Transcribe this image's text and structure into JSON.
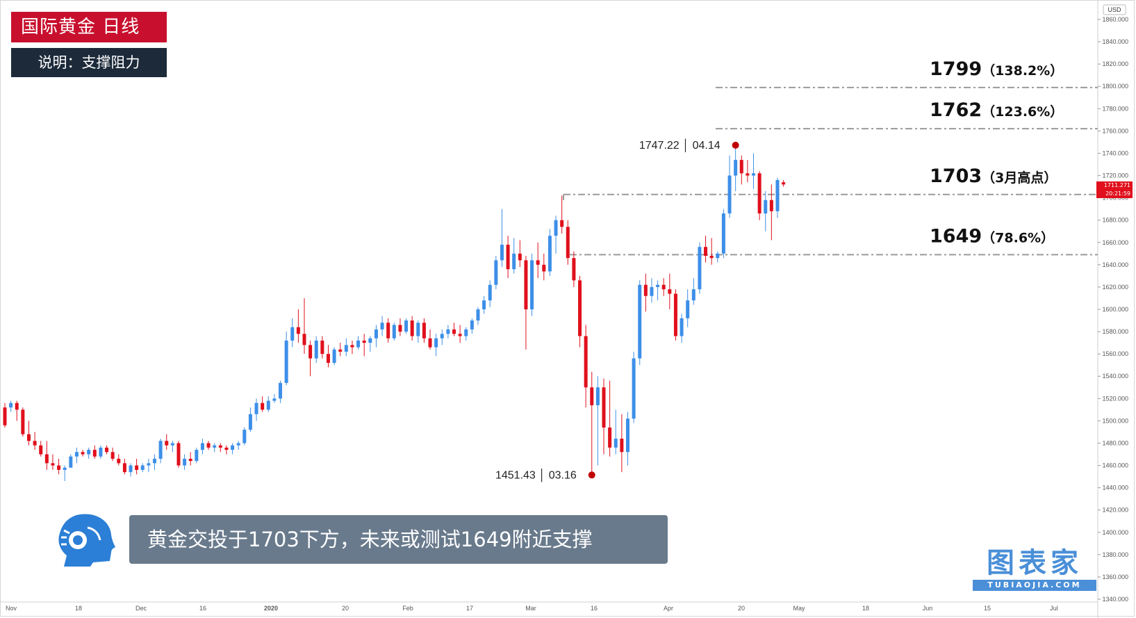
{
  "header": {
    "title": "国际黄金  日线",
    "note": "说明：支撑阻力"
  },
  "caption": "黄金交投于1703下方，未来或测试1649附近支撑",
  "watermark": {
    "main": "图表家",
    "sub": "TUBIAOJIA.COM"
  },
  "colors": {
    "up": "#3d8fe8",
    "down": "#e0101c",
    "level_line": "#9a9a9a",
    "marker": "#c00000",
    "title_bg": "#c8102e",
    "note_bg": "#1c2a3a",
    "caption_bg": "#697a8c",
    "price_tag": "#e0101c"
  },
  "chart_data": {
    "type": "candlestick",
    "title": "国际黄金 日线",
    "y_axis": {
      "currency_label": "USD",
      "range": [
        1332,
        1868
      ],
      "tick_labels": [
        "1860.000",
        "1840.000",
        "1820.000",
        "1800.000",
        "1780.000",
        "1760.000",
        "1740.000",
        "1720.000",
        "1700.000",
        "1680.000",
        "1660.000",
        "1640.000",
        "1620.000",
        "1600.000",
        "1580.000",
        "1560.000",
        "1540.000",
        "1520.000",
        "1500.000",
        "1480.000",
        "1460.000",
        "1440.000",
        "1420.000",
        "1400.000",
        "1380.000",
        "1360.000",
        "1340.000"
      ]
    },
    "x_axis": {
      "tick_labels": [
        "Nov",
        "18",
        "Dec",
        "16",
        "2020",
        "20",
        "Feb",
        "17",
        "Mar",
        "16",
        "Apr",
        "20",
        "May",
        "18",
        "Jun",
        "15",
        "Jul"
      ]
    },
    "current_price": {
      "price": "1711.271",
      "time": "20:21:59"
    },
    "candles": [
      [
        1512,
        1516,
        1494,
        1496
      ],
      [
        1512,
        1518,
        1508,
        1516
      ],
      [
        1516,
        1518,
        1500,
        1510
      ],
      [
        1510,
        1512,
        1486,
        1488
      ],
      [
        1488,
        1500,
        1478,
        1482
      ],
      [
        1482,
        1490,
        1474,
        1478
      ],
      [
        1478,
        1482,
        1468,
        1470
      ],
      [
        1470,
        1482,
        1456,
        1462
      ],
      [
        1462,
        1470,
        1456,
        1460
      ],
      [
        1460,
        1466,
        1452,
        1456
      ],
      [
        1456,
        1460,
        1446,
        1458
      ],
      [
        1458,
        1470,
        1458,
        1468
      ],
      [
        1468,
        1476,
        1462,
        1472
      ],
      [
        1472,
        1474,
        1468,
        1470
      ],
      [
        1470,
        1476,
        1466,
        1474
      ],
      [
        1474,
        1478,
        1466,
        1468
      ],
      [
        1468,
        1478,
        1466,
        1476
      ],
      [
        1476,
        1478,
        1470,
        1472
      ],
      [
        1472,
        1476,
        1464,
        1466
      ],
      [
        1466,
        1470,
        1460,
        1462
      ],
      [
        1462,
        1466,
        1452,
        1454
      ],
      [
        1454,
        1462,
        1450,
        1460
      ],
      [
        1460,
        1466,
        1452,
        1456
      ],
      [
        1456,
        1462,
        1454,
        1460
      ],
      [
        1460,
        1466,
        1454,
        1462
      ],
      [
        1462,
        1470,
        1456,
        1466
      ],
      [
        1466,
        1484,
        1462,
        1482
      ],
      [
        1482,
        1488,
        1474,
        1478
      ],
      [
        1478,
        1482,
        1472,
        1480
      ],
      [
        1480,
        1482,
        1458,
        1460
      ],
      [
        1460,
        1470,
        1456,
        1466
      ],
      [
        1466,
        1472,
        1460,
        1464
      ],
      [
        1464,
        1476,
        1462,
        1474
      ],
      [
        1474,
        1484,
        1470,
        1480
      ],
      [
        1480,
        1482,
        1474,
        1476
      ],
      [
        1476,
        1480,
        1472,
        1478
      ],
      [
        1478,
        1480,
        1472,
        1476
      ],
      [
        1476,
        1478,
        1470,
        1474
      ],
      [
        1474,
        1480,
        1470,
        1478
      ],
      [
        1478,
        1482,
        1474,
        1480
      ],
      [
        1480,
        1494,
        1478,
        1492
      ],
      [
        1492,
        1512,
        1490,
        1506
      ],
      [
        1506,
        1520,
        1500,
        1516
      ],
      [
        1516,
        1522,
        1508,
        1510
      ],
      [
        1510,
        1522,
        1508,
        1518
      ],
      [
        1518,
        1524,
        1516,
        1520
      ],
      [
        1520,
        1536,
        1516,
        1534
      ],
      [
        1534,
        1580,
        1532,
        1572
      ],
      [
        1572,
        1592,
        1566,
        1584
      ],
      [
        1584,
        1600,
        1570,
        1578
      ],
      [
        1578,
        1610,
        1560,
        1568
      ],
      [
        1568,
        1572,
        1540,
        1556
      ],
      [
        1556,
        1576,
        1552,
        1572
      ],
      [
        1572,
        1576,
        1556,
        1560
      ],
      [
        1560,
        1568,
        1548,
        1552
      ],
      [
        1552,
        1566,
        1550,
        1564
      ],
      [
        1564,
        1570,
        1558,
        1562
      ],
      [
        1562,
        1574,
        1558,
        1568
      ],
      [
        1568,
        1572,
        1560,
        1566
      ],
      [
        1566,
        1576,
        1564,
        1572
      ],
      [
        1572,
        1578,
        1558,
        1570
      ],
      [
        1570,
        1576,
        1562,
        1574
      ],
      [
        1574,
        1586,
        1566,
        1582
      ],
      [
        1582,
        1594,
        1576,
        1588
      ],
      [
        1588,
        1592,
        1570,
        1574
      ],
      [
        1574,
        1588,
        1572,
        1586
      ],
      [
        1586,
        1592,
        1576,
        1580
      ],
      [
        1580,
        1592,
        1578,
        1590
      ],
      [
        1590,
        1594,
        1572,
        1576
      ],
      [
        1576,
        1590,
        1570,
        1588
      ],
      [
        1588,
        1592,
        1570,
        1574
      ],
      [
        1574,
        1582,
        1564,
        1566
      ],
      [
        1566,
        1578,
        1558,
        1574
      ],
      [
        1574,
        1582,
        1568,
        1578
      ],
      [
        1578,
        1586,
        1574,
        1582
      ],
      [
        1582,
        1588,
        1576,
        1578
      ],
      [
        1578,
        1586,
        1570,
        1576
      ],
      [
        1576,
        1584,
        1572,
        1582
      ],
      [
        1582,
        1592,
        1578,
        1590
      ],
      [
        1590,
        1602,
        1586,
        1600
      ],
      [
        1600,
        1612,
        1596,
        1608
      ],
      [
        1608,
        1626,
        1602,
        1622
      ],
      [
        1622,
        1648,
        1618,
        1644
      ],
      [
        1644,
        1690,
        1638,
        1658
      ],
      [
        1658,
        1666,
        1628,
        1636
      ],
      [
        1636,
        1664,
        1632,
        1650
      ],
      [
        1650,
        1662,
        1638,
        1644
      ],
      [
        1644,
        1648,
        1564,
        1600
      ],
      [
        1600,
        1650,
        1594,
        1644
      ],
      [
        1644,
        1660,
        1628,
        1640
      ],
      [
        1640,
        1650,
        1626,
        1634
      ],
      [
        1634,
        1672,
        1630,
        1666
      ],
      [
        1666,
        1684,
        1650,
        1680
      ],
      [
        1680,
        1702,
        1668,
        1674
      ],
      [
        1674,
        1680,
        1640,
        1646
      ],
      [
        1646,
        1652,
        1620,
        1626
      ],
      [
        1626,
        1630,
        1566,
        1576
      ],
      [
        1576,
        1586,
        1512,
        1530
      ],
      [
        1530,
        1544,
        1452,
        1514
      ],
      [
        1514,
        1540,
        1460,
        1530
      ],
      [
        1530,
        1538,
        1470,
        1494
      ],
      [
        1494,
        1536,
        1468,
        1476
      ],
      [
        1476,
        1510,
        1470,
        1484
      ],
      [
        1484,
        1506,
        1454,
        1472
      ],
      [
        1472,
        1508,
        1460,
        1502
      ],
      [
        1502,
        1562,
        1498,
        1556
      ],
      [
        1556,
        1626,
        1550,
        1622
      ],
      [
        1622,
        1632,
        1598,
        1612
      ],
      [
        1612,
        1628,
        1606,
        1620
      ],
      [
        1620,
        1626,
        1608,
        1622
      ],
      [
        1622,
        1628,
        1612,
        1618
      ],
      [
        1618,
        1632,
        1600,
        1614
      ],
      [
        1614,
        1618,
        1572,
        1576
      ],
      [
        1576,
        1596,
        1570,
        1592
      ],
      [
        1592,
        1618,
        1584,
        1608
      ],
      [
        1608,
        1628,
        1604,
        1618
      ],
      [
        1618,
        1660,
        1614,
        1656
      ],
      [
        1656,
        1666,
        1642,
        1648
      ],
      [
        1648,
        1664,
        1640,
        1646
      ],
      [
        1646,
        1652,
        1642,
        1650
      ],
      [
        1650,
        1690,
        1646,
        1686
      ],
      [
        1686,
        1738,
        1682,
        1720
      ],
      [
        1720,
        1748,
        1706,
        1734
      ],
      [
        1734,
        1738,
        1712,
        1722
      ],
      [
        1722,
        1734,
        1714,
        1720
      ],
      [
        1720,
        1740,
        1708,
        1722
      ],
      [
        1722,
        1724,
        1680,
        1686
      ],
      [
        1686,
        1706,
        1670,
        1698
      ],
      [
        1698,
        1712,
        1662,
        1688
      ],
      [
        1688,
        1718,
        1682,
        1716
      ],
      [
        1714,
        1716,
        1710,
        1712
      ]
    ],
    "annotations": [
      {
        "type": "point",
        "candle_index": 122,
        "price": 1747.22,
        "label_value": "1747.22",
        "label_date": "04.14"
      },
      {
        "type": "point",
        "candle_index": 98,
        "price": 1451.43,
        "label_value": "1451.43",
        "label_date": "03.16"
      }
    ],
    "levels": [
      {
        "price": 1799,
        "value_label": "1799",
        "note": "（138.2%）"
      },
      {
        "price": 1762,
        "value_label": "1762",
        "note": "（123.6%）"
      },
      {
        "price": 1703,
        "value_label": "1703",
        "note": "（3月高点）"
      },
      {
        "price": 1649,
        "value_label": "1649",
        "note": "（78.6%）"
      }
    ]
  }
}
